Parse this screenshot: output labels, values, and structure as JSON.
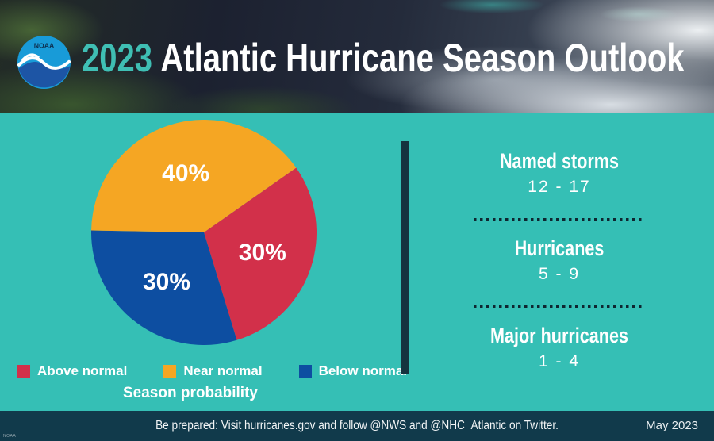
{
  "header": {
    "title_year": "2023",
    "title_rest": "Atlantic Hurricane Season Outlook",
    "logo_text": "NOAA"
  },
  "colors": {
    "background_teal": "#35bfb5",
    "title_accent": "#3fbfb4",
    "divider_bar": "#15333f",
    "footer_bg": "#113a4b",
    "dotted_line": "#0e2630",
    "above_normal_red": "#d2304a",
    "near_normal_orange": "#f5a623",
    "below_normal_blue": "#0d4ea1"
  },
  "chart_data": {
    "type": "pie",
    "title": "Season probability",
    "slices": [
      {
        "label": "Above normal",
        "value": 30,
        "display": "30%",
        "color": "#d2304a"
      },
      {
        "label": "Near normal",
        "value": 40,
        "display": "40%",
        "color": "#f5a623"
      },
      {
        "label": "Below normal",
        "value": 30,
        "display": "30%",
        "color": "#0d4ea1"
      }
    ],
    "rotation_deg": 55,
    "draw_order": [
      0,
      2,
      1
    ],
    "legend_position": "bottom"
  },
  "stats": [
    {
      "label": "Named storms",
      "range": "12 - 17"
    },
    {
      "label": "Hurricanes",
      "range": "5 - 9"
    },
    {
      "label": "Major hurricanes",
      "range": "1 - 4"
    }
  ],
  "footer": {
    "message": "Be prepared: Visit hurricanes.gov and follow @NWS and @NHC_Atlantic on Twitter.",
    "date": "May 2023",
    "credit": "NOAA"
  }
}
